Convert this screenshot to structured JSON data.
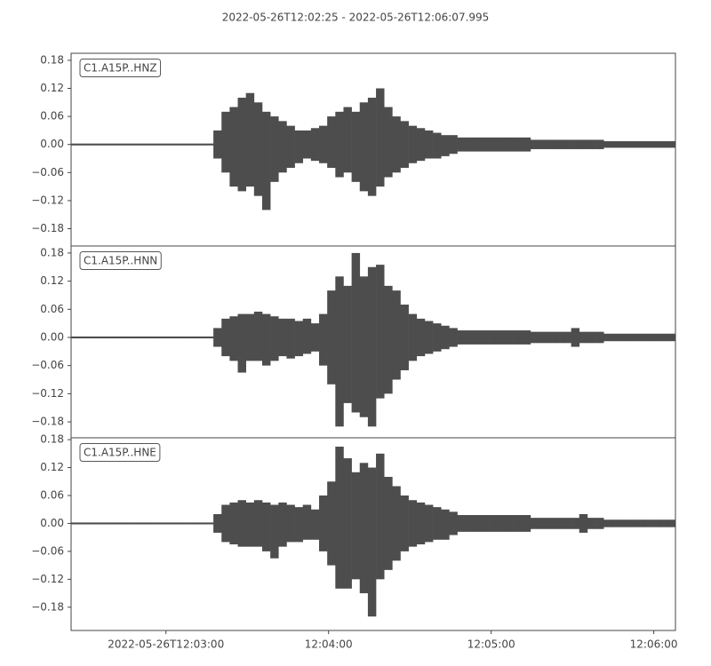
{
  "chart_data": {
    "type": "waveform",
    "title": "2022-05-26T12:02:25  -  2022-05-26T12:06:07.995",
    "xlim": [
      0,
      222.995
    ],
    "xticks": [
      {
        "value": 35,
        "label": "2022-05-26T12:03:00"
      },
      {
        "value": 95,
        "label": "12:04:00"
      },
      {
        "value": 155,
        "label": "12:05:00"
      },
      {
        "value": 215,
        "label": "12:06:00"
      }
    ],
    "color": "#4d4d4d",
    "x": [
      0,
      3,
      6,
      9,
      12,
      15,
      18,
      21,
      24,
      27,
      30,
      33,
      36,
      39,
      42,
      45,
      48,
      51,
      54,
      57,
      60,
      63,
      66,
      69,
      72,
      75,
      78,
      81,
      84,
      87,
      90,
      93,
      96,
      99,
      102,
      105,
      108,
      111,
      114,
      117,
      120,
      123,
      126,
      129,
      132,
      135,
      138,
      141,
      144,
      147,
      150,
      153,
      156,
      159,
      162,
      165,
      168,
      171,
      174,
      177,
      180,
      183,
      186,
      189,
      192,
      195,
      198,
      201,
      204,
      207,
      210,
      213,
      216,
      219,
      222
    ],
    "traces": [
      {
        "label": "C1.A15P..HNZ",
        "ylim": [
          -0.217,
          0.195
        ],
        "yticks": [
          0.18,
          0.12,
          0.06,
          {
            "value": 0,
            "label": "0.00"
          },
          {
            "value": -0.06,
            "label": "−0.06"
          },
          {
            "value": -0.12,
            "label": "−0.12"
          },
          {
            "value": -0.18,
            "label": "−0.18"
          }
        ],
        "upper": [
          0.002,
          0.002,
          0.002,
          0.002,
          0.002,
          0.002,
          0.002,
          0.002,
          0.002,
          0.002,
          0.002,
          0.002,
          0.002,
          0.002,
          0.002,
          0.002,
          0.002,
          0.002,
          0.03,
          0.07,
          0.08,
          0.1,
          0.11,
          0.09,
          0.07,
          0.06,
          0.05,
          0.04,
          0.03,
          0.03,
          0.035,
          0.04,
          0.06,
          0.07,
          0.08,
          0.07,
          0.09,
          0.1,
          0.12,
          0.08,
          0.06,
          0.05,
          0.04,
          0.035,
          0.03,
          0.025,
          0.02,
          0.02,
          0.015,
          0.015,
          0.015,
          0.015,
          0.015,
          0.015,
          0.015,
          0.015,
          0.015,
          0.01,
          0.01,
          0.01,
          0.01,
          0.01,
          0.01,
          0.01,
          0.01,
          0.01,
          0.007,
          0.007,
          0.007,
          0.007,
          0.007,
          0.007,
          0.007,
          0.007,
          0.007
        ],
        "lower": [
          -0.002,
          -0.002,
          -0.002,
          -0.002,
          -0.002,
          -0.002,
          -0.002,
          -0.002,
          -0.002,
          -0.002,
          -0.002,
          -0.002,
          -0.002,
          -0.002,
          -0.002,
          -0.002,
          -0.002,
          -0.002,
          -0.03,
          -0.06,
          -0.09,
          -0.1,
          -0.09,
          -0.11,
          -0.14,
          -0.08,
          -0.06,
          -0.05,
          -0.04,
          -0.03,
          -0.035,
          -0.04,
          -0.05,
          -0.07,
          -0.06,
          -0.08,
          -0.1,
          -0.11,
          -0.09,
          -0.07,
          -0.06,
          -0.05,
          -0.04,
          -0.035,
          -0.03,
          -0.03,
          -0.025,
          -0.02,
          -0.015,
          -0.015,
          -0.015,
          -0.015,
          -0.015,
          -0.015,
          -0.015,
          -0.015,
          -0.015,
          -0.01,
          -0.01,
          -0.01,
          -0.01,
          -0.01,
          -0.01,
          -0.01,
          -0.01,
          -0.01,
          -0.007,
          -0.007,
          -0.007,
          -0.007,
          -0.007,
          -0.007,
          -0.007,
          -0.007,
          -0.007
        ]
      },
      {
        "label": "C1.A15P..HNN",
        "ylim": [
          -0.214,
          0.195
        ],
        "yticks": [
          0.18,
          0.12,
          0.06,
          {
            "value": 0,
            "label": "0.00"
          },
          {
            "value": -0.06,
            "label": "−0.06"
          },
          {
            "value": -0.12,
            "label": "−0.12"
          },
          {
            "value": -0.18,
            "label": "−0.18"
          }
        ],
        "upper": [
          0.002,
          0.002,
          0.002,
          0.002,
          0.002,
          0.002,
          0.002,
          0.002,
          0.002,
          0.002,
          0.002,
          0.002,
          0.002,
          0.002,
          0.002,
          0.002,
          0.002,
          0.002,
          0.02,
          0.04,
          0.045,
          0.05,
          0.05,
          0.055,
          0.05,
          0.045,
          0.04,
          0.04,
          0.035,
          0.04,
          0.03,
          0.05,
          0.1,
          0.13,
          0.11,
          0.18,
          0.13,
          0.15,
          0.155,
          0.11,
          0.1,
          0.07,
          0.05,
          0.04,
          0.035,
          0.03,
          0.025,
          0.02,
          0.015,
          0.015,
          0.015,
          0.015,
          0.015,
          0.015,
          0.015,
          0.015,
          0.015,
          0.012,
          0.012,
          0.012,
          0.012,
          0.012,
          0.02,
          0.012,
          0.012,
          0.012,
          0.008,
          0.008,
          0.008,
          0.008,
          0.008,
          0.008,
          0.008,
          0.008,
          0.008
        ],
        "lower": [
          -0.002,
          -0.002,
          -0.002,
          -0.002,
          -0.002,
          -0.002,
          -0.002,
          -0.002,
          -0.002,
          -0.002,
          -0.002,
          -0.002,
          -0.002,
          -0.002,
          -0.002,
          -0.002,
          -0.002,
          -0.002,
          -0.02,
          -0.04,
          -0.05,
          -0.075,
          -0.05,
          -0.05,
          -0.06,
          -0.05,
          -0.04,
          -0.045,
          -0.04,
          -0.035,
          -0.03,
          -0.06,
          -0.1,
          -0.19,
          -0.14,
          -0.16,
          -0.17,
          -0.19,
          -0.13,
          -0.12,
          -0.09,
          -0.07,
          -0.05,
          -0.04,
          -0.035,
          -0.03,
          -0.025,
          -0.02,
          -0.015,
          -0.015,
          -0.015,
          -0.015,
          -0.015,
          -0.015,
          -0.015,
          -0.015,
          -0.015,
          -0.012,
          -0.012,
          -0.012,
          -0.012,
          -0.012,
          -0.02,
          -0.012,
          -0.012,
          -0.012,
          -0.008,
          -0.008,
          -0.008,
          -0.008,
          -0.008,
          -0.008,
          -0.008,
          -0.008,
          -0.008
        ]
      },
      {
        "label": "C1.A15P..HNE",
        "ylim": [
          -0.23,
          0.184
        ],
        "yticks": [
          0.18,
          0.12,
          0.06,
          {
            "value": 0,
            "label": "0.00"
          },
          {
            "value": -0.06,
            "label": "−0.06"
          },
          {
            "value": -0.12,
            "label": "−0.12"
          },
          {
            "value": -0.18,
            "label": "−0.18"
          }
        ],
        "upper": [
          0.002,
          0.002,
          0.002,
          0.002,
          0.002,
          0.002,
          0.002,
          0.002,
          0.002,
          0.002,
          0.002,
          0.002,
          0.002,
          0.002,
          0.002,
          0.002,
          0.002,
          0.002,
          0.02,
          0.04,
          0.045,
          0.05,
          0.045,
          0.05,
          0.045,
          0.04,
          0.045,
          0.04,
          0.035,
          0.04,
          0.03,
          0.06,
          0.09,
          0.165,
          0.14,
          0.11,
          0.13,
          0.12,
          0.15,
          0.1,
          0.08,
          0.06,
          0.05,
          0.045,
          0.04,
          0.035,
          0.03,
          0.025,
          0.018,
          0.018,
          0.018,
          0.018,
          0.018,
          0.018,
          0.018,
          0.018,
          0.018,
          0.012,
          0.012,
          0.012,
          0.012,
          0.012,
          0.012,
          0.02,
          0.012,
          0.012,
          0.008,
          0.008,
          0.008,
          0.008,
          0.008,
          0.008,
          0.008,
          0.008,
          0.008
        ],
        "lower": [
          -0.002,
          -0.002,
          -0.002,
          -0.002,
          -0.002,
          -0.002,
          -0.002,
          -0.002,
          -0.002,
          -0.002,
          -0.002,
          -0.002,
          -0.002,
          -0.002,
          -0.002,
          -0.002,
          -0.002,
          -0.002,
          -0.02,
          -0.04,
          -0.045,
          -0.05,
          -0.05,
          -0.05,
          -0.06,
          -0.075,
          -0.05,
          -0.04,
          -0.04,
          -0.035,
          -0.035,
          -0.06,
          -0.09,
          -0.14,
          -0.14,
          -0.12,
          -0.15,
          -0.2,
          -0.12,
          -0.1,
          -0.08,
          -0.06,
          -0.05,
          -0.045,
          -0.04,
          -0.035,
          -0.035,
          -0.025,
          -0.018,
          -0.018,
          -0.018,
          -0.018,
          -0.018,
          -0.018,
          -0.018,
          -0.018,
          -0.018,
          -0.012,
          -0.012,
          -0.012,
          -0.012,
          -0.012,
          -0.012,
          -0.02,
          -0.012,
          -0.012,
          -0.008,
          -0.008,
          -0.008,
          -0.008,
          -0.008,
          -0.008,
          -0.008,
          -0.008,
          -0.008
        ]
      }
    ]
  }
}
